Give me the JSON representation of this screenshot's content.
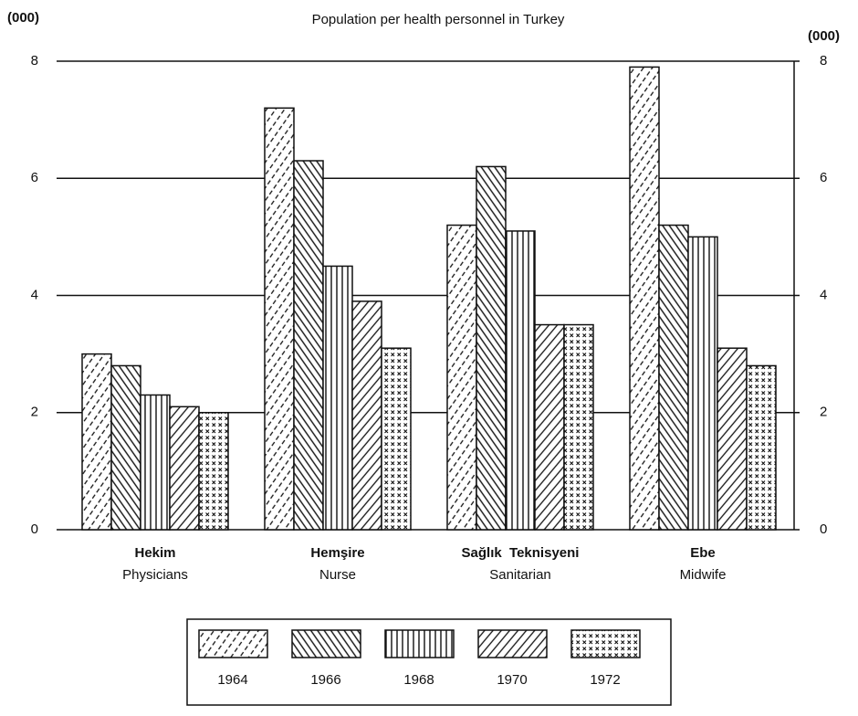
{
  "chart_data": {
    "type": "bar",
    "title": "Population per health personnel in Turkey",
    "y_label": "(000)",
    "y2_label": "(000)",
    "categories": [
      "Hekim",
      "Hemşire",
      "Sağlık  Teknisyeni",
      "Ebe"
    ],
    "category_translations": [
      "Physicians",
      "Nurse",
      "Sanitarian",
      "Midwife"
    ],
    "series": [
      {
        "name": "1964",
        "color": "#111111",
        "values": [
          3.0,
          7.2,
          5.2,
          7.9
        ]
      },
      {
        "name": "1966",
        "color": "#111111",
        "values": [
          2.8,
          6.3,
          6.2,
          5.2
        ]
      },
      {
        "name": "1968",
        "color": "#111111",
        "values": [
          2.3,
          4.5,
          5.1,
          5.0
        ]
      },
      {
        "name": "1970",
        "color": "#111111",
        "values": [
          2.1,
          3.9,
          3.5,
          3.1
        ]
      },
      {
        "name": "1972",
        "color": "#111111",
        "values": [
          2.0,
          3.1,
          3.5,
          2.8
        ]
      }
    ],
    "ylim": [
      0,
      8
    ],
    "yticks": [
      0,
      2,
      4,
      6,
      8
    ],
    "y2lim": [
      0,
      8
    ],
    "y2ticks": [
      0,
      2,
      4,
      6,
      8
    ],
    "grid": true,
    "legend": "bottom"
  }
}
